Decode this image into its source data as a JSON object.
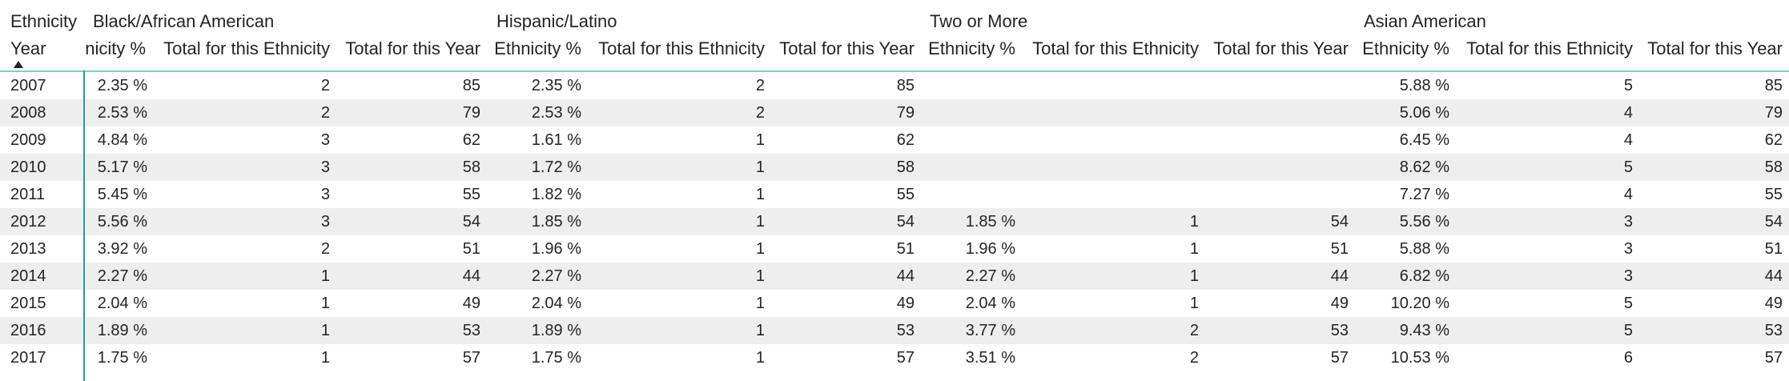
{
  "table": {
    "column_header_label": "Ethnicity",
    "row_header_label": "Year",
    "row_header_sort": "ascending",
    "groups": [
      {
        "name": "Black/African American",
        "col_pct_partial": "nicity %",
        "col_count": "Total for this Ethnicity",
        "col_total": "Total for this Year"
      },
      {
        "name": "Hispanic/Latino",
        "col_pct": "Ethnicity %",
        "col_count": "Total for this Ethnicity",
        "col_total": "Total for this Year"
      },
      {
        "name": "Two or More",
        "col_pct": "Ethnicity %",
        "col_count": "Total for this Ethnicity",
        "col_total": "Total for this Year"
      },
      {
        "name": "Asian American",
        "col_pct": "Ethnicity %",
        "col_count": "Total for this Ethnicity",
        "col_total": "Total for this Year"
      }
    ],
    "rows": [
      {
        "year": "2007",
        "g": [
          [
            "2.35 %",
            "2",
            "85"
          ],
          [
            "2.35 %",
            "2",
            "85"
          ],
          [
            "",
            "",
            ""
          ],
          [
            "5.88 %",
            "5",
            "85"
          ]
        ]
      },
      {
        "year": "2008",
        "g": [
          [
            "2.53 %",
            "2",
            "79"
          ],
          [
            "2.53 %",
            "2",
            "79"
          ],
          [
            "",
            "",
            ""
          ],
          [
            "5.06 %",
            "4",
            "79"
          ]
        ]
      },
      {
        "year": "2009",
        "g": [
          [
            "4.84 %",
            "3",
            "62"
          ],
          [
            "1.61 %",
            "1",
            "62"
          ],
          [
            "",
            "",
            ""
          ],
          [
            "6.45 %",
            "4",
            "62"
          ]
        ]
      },
      {
        "year": "2010",
        "g": [
          [
            "5.17 %",
            "3",
            "58"
          ],
          [
            "1.72 %",
            "1",
            "58"
          ],
          [
            "",
            "",
            ""
          ],
          [
            "8.62 %",
            "5",
            "58"
          ]
        ]
      },
      {
        "year": "2011",
        "g": [
          [
            "5.45 %",
            "3",
            "55"
          ],
          [
            "1.82 %",
            "1",
            "55"
          ],
          [
            "",
            "",
            ""
          ],
          [
            "7.27 %",
            "4",
            "55"
          ]
        ]
      },
      {
        "year": "2012",
        "g": [
          [
            "5.56 %",
            "3",
            "54"
          ],
          [
            "1.85 %",
            "1",
            "54"
          ],
          [
            "1.85 %",
            "1",
            "54"
          ],
          [
            "5.56 %",
            "3",
            "54"
          ]
        ]
      },
      {
        "year": "2013",
        "g": [
          [
            "3.92 %",
            "2",
            "51"
          ],
          [
            "1.96 %",
            "1",
            "51"
          ],
          [
            "1.96 %",
            "1",
            "51"
          ],
          [
            "5.88 %",
            "3",
            "51"
          ]
        ]
      },
      {
        "year": "2014",
        "g": [
          [
            "2.27 %",
            "1",
            "44"
          ],
          [
            "2.27 %",
            "1",
            "44"
          ],
          [
            "2.27 %",
            "1",
            "44"
          ],
          [
            "6.82 %",
            "3",
            "44"
          ]
        ]
      },
      {
        "year": "2015",
        "g": [
          [
            "2.04 %",
            "1",
            "49"
          ],
          [
            "2.04 %",
            "1",
            "49"
          ],
          [
            "2.04 %",
            "1",
            "49"
          ],
          [
            "10.20 %",
            "5",
            "49"
          ]
        ]
      },
      {
        "year": "2016",
        "g": [
          [
            "1.89 %",
            "1",
            "53"
          ],
          [
            "1.89 %",
            "1",
            "53"
          ],
          [
            "3.77 %",
            "2",
            "53"
          ],
          [
            "9.43 %",
            "5",
            "53"
          ]
        ]
      },
      {
        "year": "2017",
        "g": [
          [
            "1.75 %",
            "1",
            "57"
          ],
          [
            "1.75 %",
            "1",
            "57"
          ],
          [
            "3.51 %",
            "2",
            "57"
          ],
          [
            "10.53 %",
            "6",
            "57"
          ]
        ]
      }
    ]
  }
}
